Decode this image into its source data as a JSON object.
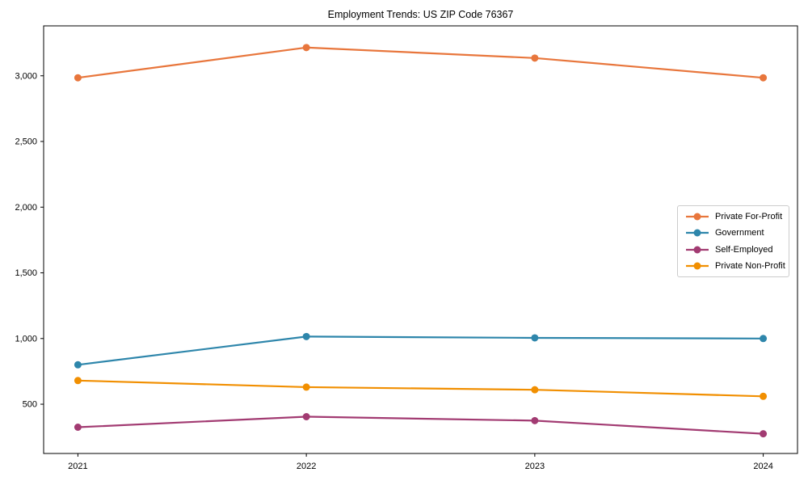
{
  "chart_data": {
    "type": "line",
    "title": "Employment Trends: US ZIP Code 76367",
    "xlabel": "",
    "ylabel": "",
    "x": [
      2021,
      2022,
      2023,
      2024
    ],
    "xtick_labels": [
      "2021",
      "2022",
      "2023",
      "2024"
    ],
    "yticks": [
      500,
      1000,
      1500,
      2000,
      2500,
      3000
    ],
    "ytick_labels": [
      "500",
      "1,000",
      "1,500",
      "2,000",
      "2,500",
      "3,000"
    ],
    "xlim": [
      2020.85,
      2024.15
    ],
    "ylim": [
      125,
      3380
    ],
    "grid": false,
    "legend_position": "center-right",
    "frame_color": "#000000",
    "tick_label_color": "#000000",
    "series": [
      {
        "name": "Private For-Profit",
        "color": "#e8763c",
        "values": [
          2985,
          3215,
          3135,
          2985
        ]
      },
      {
        "name": "Government",
        "color": "#2e86ab",
        "values": [
          800,
          1015,
          1005,
          1000
        ]
      },
      {
        "name": "Self-Employed",
        "color": "#a23b72",
        "values": [
          325,
          405,
          375,
          275
        ]
      },
      {
        "name": "Private Non-Profit",
        "color": "#f18f01",
        "values": [
          680,
          630,
          610,
          560
        ]
      }
    ]
  }
}
